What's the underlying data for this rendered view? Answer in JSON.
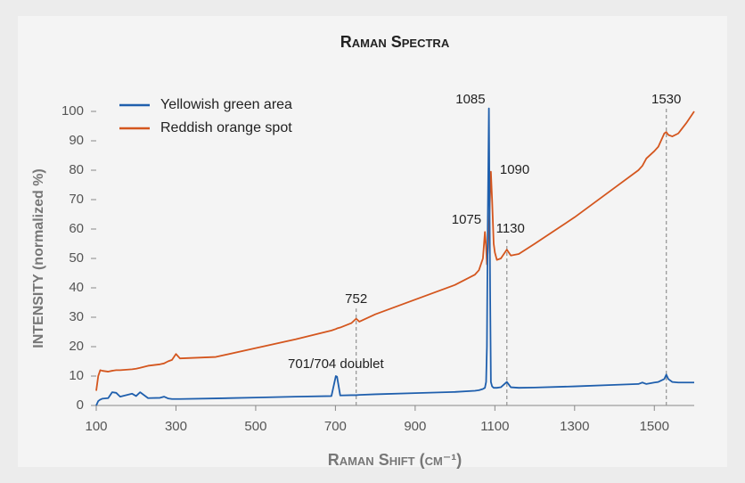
{
  "chart_data": {
    "type": "line",
    "title": "Raman Spectra",
    "xlabel": "Raman Shift (cm⁻¹)",
    "ylabel": "INTENSITY (normalized %)",
    "x": [
      100,
      105,
      110,
      115,
      130,
      140,
      150,
      160,
      190,
      200,
      210,
      230,
      260,
      270,
      280,
      290,
      300,
      310,
      400,
      500,
      600,
      690,
      701,
      704,
      712,
      740,
      752,
      760,
      800,
      900,
      1000,
      1050,
      1060,
      1070,
      1075,
      1078,
      1080,
      1082,
      1085,
      1088,
      1090,
      1093,
      1097,
      1100,
      1105,
      1115,
      1130,
      1140,
      1160,
      1200,
      1300,
      1400,
      1460,
      1470,
      1480,
      1500,
      1510,
      1525,
      1530,
      1535,
      1545,
      1560,
      1580,
      1600
    ],
    "series": [
      {
        "name": "Yellowish green area",
        "color": "#1f5fad",
        "values": [
          0,
          1.5,
          2,
          2.3,
          2.5,
          4.5,
          4.3,
          3,
          4,
          3.2,
          4.5,
          2.5,
          2.6,
          3,
          2.4,
          2.2,
          2.2,
          2.2,
          2.4,
          2.7,
          3,
          3.2,
          10,
          9.8,
          3.4,
          3.5,
          3.5,
          3.6,
          3.8,
          4.2,
          4.6,
          5,
          5.2,
          5.6,
          6,
          8,
          20,
          60,
          101,
          40,
          8,
          6.5,
          6,
          6,
          6,
          6.2,
          8,
          6.2,
          6,
          6.1,
          6.5,
          7,
          7.3,
          7.8,
          7.3,
          7.8,
          8,
          9,
          10.5,
          9,
          8,
          7.8,
          7.8,
          7.8
        ]
      },
      {
        "name": "Reddish orange spot",
        "color": "#d4561e",
        "values": [
          5,
          10,
          12,
          11.8,
          11.5,
          11.8,
          12,
          12,
          12.3,
          12.5,
          12.8,
          13.5,
          14,
          14.3,
          15,
          15.5,
          17.5,
          16,
          16.5,
          19.5,
          22.5,
          25.5,
          26,
          26.2,
          26.5,
          28,
          29.5,
          28.5,
          31,
          36,
          41,
          44.5,
          46,
          50,
          59,
          54,
          48,
          52,
          60,
          72,
          79.5,
          70,
          55,
          52,
          49.5,
          50,
          53,
          51,
          51.5,
          55,
          64,
          74,
          80,
          81.5,
          84,
          86.5,
          88,
          92.5,
          93,
          92,
          91.5,
          92.5,
          96,
          100
        ]
      }
    ],
    "annotations": [
      {
        "text": "1085",
        "x": 1085,
        "y": 104
      },
      {
        "text": "1530",
        "x": 1530,
        "y": 104
      },
      {
        "text": "1090",
        "x": 1090,
        "y": 80
      },
      {
        "text": "1075",
        "x": 1075,
        "y": 63
      },
      {
        "text": "1130",
        "x": 1130,
        "y": 60
      },
      {
        "text": "752",
        "x": 752,
        "y": 36
      },
      {
        "text": "701/704 doublet",
        "x": 701,
        "y": 14
      }
    ],
    "reference_lines": [
      752,
      1130,
      1530
    ],
    "xlim": [
      100,
      1600
    ],
    "ylim": [
      0,
      102
    ],
    "xticks": [
      100,
      300,
      500,
      700,
      900,
      1100,
      1300,
      1500
    ],
    "yticks": [
      0,
      10,
      20,
      30,
      40,
      50,
      60,
      70,
      80,
      90,
      100
    ],
    "legend": "upper left"
  }
}
